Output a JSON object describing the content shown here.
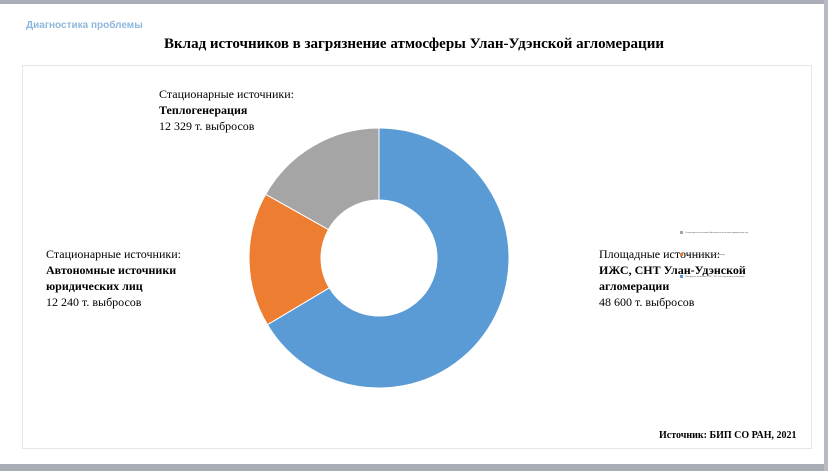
{
  "header": {
    "section_label": "Диагностика проблемы",
    "title": "Вклад источников в загрязнение атмосферы Улан-Удэнской агломерации"
  },
  "labels": {
    "heat": {
      "line1": "Стационарные источники:",
      "line2": "Теплогенерация",
      "line3": "12 329 т. выбросов"
    },
    "auto": {
      "line1": "Стационарные источники:",
      "line2": "Автономные источники",
      "line3": "юридических лиц",
      "line4": "12 240 т. выбросов"
    },
    "area": {
      "line1": "Площадные источники:",
      "line2": "ИЖС, СНТ Улан-Удэнской",
      "line3": "агломерации",
      "line4": "48 600 т. выбросов"
    }
  },
  "mini_legend": [
    "Стационарные источники: Автономные источники юридических лиц",
    "Стационарные источники: Теплогенерация",
    "Площадные источники: ИЖС, СНТ Улан-Удэнской агломерации"
  ],
  "source": "Источник: БИП СО РАН, 2021",
  "chart_data": {
    "type": "pie",
    "subtype": "donut",
    "title": "Вклад источников в загрязнение атмосферы Улан-Удэнской агломерации",
    "slices": [
      {
        "label": "Площадные источники: ИЖС, СНТ Улан-Удэнской агломерации",
        "value": 48600,
        "color": "#5b9bd5"
      },
      {
        "label": "Стационарные источники: Автономные источники юридических лиц",
        "value": 12240,
        "color": "#ed7d31"
      },
      {
        "label": "Стационарные источники: Теплогенерация",
        "value": 12329,
        "color": "#a5a5a5"
      }
    ],
    "unit": "т. выбросов"
  }
}
